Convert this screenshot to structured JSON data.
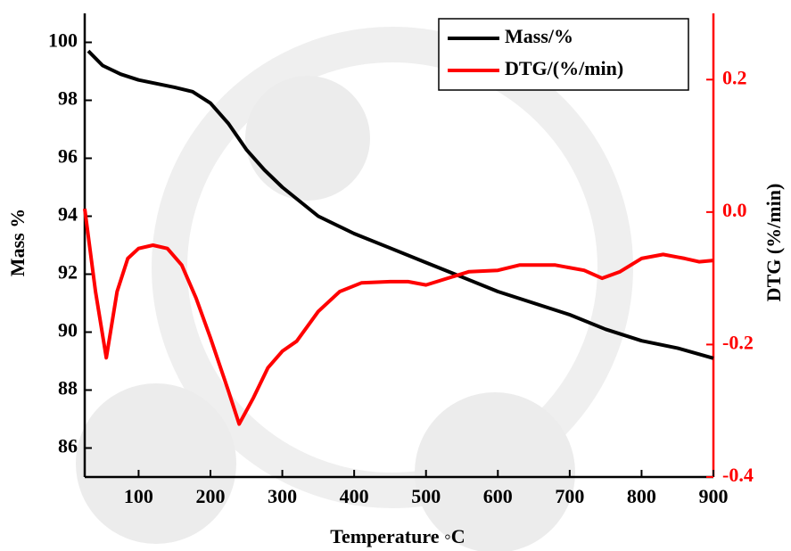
{
  "chart_data": {
    "type": "line",
    "x_label": "Temperature ◦C",
    "y_label": "Mass %",
    "y2_label": "DTG (%/min)",
    "xlim": [
      25,
      900
    ],
    "xticks": [
      100,
      200,
      300,
      400,
      500,
      600,
      700,
      800,
      900
    ],
    "ylim": [
      85,
      101
    ],
    "yticks": [
      86,
      88,
      90,
      92,
      94,
      96,
      98,
      100
    ],
    "y2lim": [
      -0.4,
      0.3
    ],
    "y2ticks": [
      -0.4,
      -0.2,
      {
        "value": 0,
        "label": "0.0"
      },
      0.2
    ],
    "legend": "upper right",
    "series": [
      {
        "name": "Mass/%",
        "color": "#000000",
        "x": [
          30,
          50,
          75,
          100,
          150,
          175,
          200,
          225,
          250,
          275,
          300,
          350,
          400,
          450,
          500,
          550,
          600,
          650,
          700,
          750,
          800,
          850,
          900
        ],
        "values": [
          99.7,
          99.2,
          98.9,
          98.7,
          98.45,
          98.3,
          97.9,
          97.2,
          96.3,
          95.6,
          95.0,
          94.0,
          93.4,
          92.9,
          92.4,
          91.9,
          91.4,
          91.0,
          90.6,
          90.1,
          89.7,
          89.45,
          89.1
        ]
      },
      {
        "name": "DTG/(%/min)",
        "color": "#ff0000",
        "axis": "y2",
        "x": [
          25,
          40,
          55,
          70,
          85,
          100,
          120,
          140,
          160,
          180,
          200,
          225,
          240,
          260,
          280,
          300,
          320,
          350,
          380,
          410,
          450,
          475,
          500,
          530,
          560,
          600,
          630,
          680,
          720,
          745,
          770,
          800,
          830,
          860,
          880,
          900
        ],
        "values": [
          0.005,
          -0.12,
          -0.22,
          -0.12,
          -0.07,
          -0.055,
          -0.05,
          -0.055,
          -0.08,
          -0.13,
          -0.19,
          -0.27,
          -0.32,
          -0.28,
          -0.235,
          -0.21,
          -0.195,
          -0.15,
          -0.12,
          -0.107,
          -0.105,
          -0.105,
          -0.11,
          -0.1,
          -0.09,
          -0.088,
          -0.08,
          -0.08,
          -0.088,
          -0.1,
          -0.09,
          -0.07,
          -0.064,
          -0.07,
          -0.075,
          -0.073
        ]
      }
    ]
  }
}
